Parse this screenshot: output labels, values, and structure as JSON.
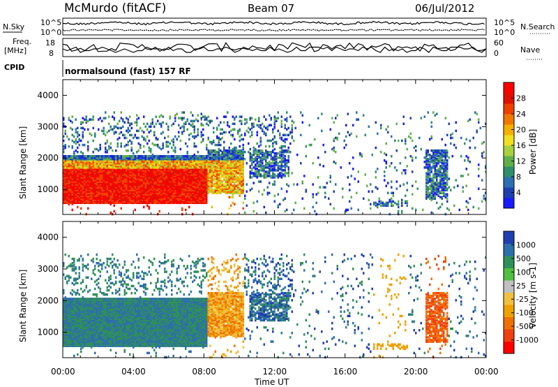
{
  "header": {
    "station": "McMurdo (fitACF)",
    "beam": "Beam 07",
    "date": "06/Jul/2012"
  },
  "panels": {
    "nsky_label": "N.Sky",
    "nsearch_label": "N.Search",
    "freq_label_line1": "Freq.",
    "freq_label_line2": "[MHz]",
    "nave_label": "Nave",
    "cpid_label": "CPID",
    "cpid_text": "normalsound (fast) 157 RF",
    "noise_ticks_left": [
      "10^5",
      "10^0"
    ],
    "noise_ticks_right": [
      "10^5",
      "10^0"
    ],
    "freq_ticks": [
      "18",
      "8"
    ],
    "nave_ticks": [
      "60",
      "0"
    ],
    "freq_range": [
      8,
      18
    ],
    "nave_range": [
      0,
      60
    ]
  },
  "colors": {
    "power_scale": [
      "#1a1aff",
      "#1f3fb0",
      "#2d6fb0",
      "#2f8f6a",
      "#5fb04a",
      "#a8d040",
      "#f0e020",
      "#f5b000",
      "#f07800",
      "#f04000",
      "#e01000",
      "#ff0000"
    ],
    "velocity_scale": [
      "#ff0000",
      "#f04010",
      "#f07000",
      "#f0a000",
      "#f0c040",
      "#c0c0c0",
      "#50c040",
      "#2f8f5a",
      "#2d6faa",
      "#1f3fb0"
    ]
  },
  "chart_data": [
    {
      "type": "heatmap",
      "name": "power",
      "ylabel": "Slant Range [km]",
      "yticks": [
        "1000",
        "2000",
        "3000",
        "4000"
      ],
      "ylim": [
        200,
        4500
      ],
      "colorbar_label": "Power [dB]",
      "colorbar_ticks": [
        "4",
        "8",
        "12",
        "16",
        "20",
        "24",
        "28"
      ],
      "colorbar_range": [
        0,
        30
      ]
    },
    {
      "type": "heatmap",
      "name": "velocity",
      "ylabel": "Slant Range [km]",
      "yticks": [
        "1000",
        "2000",
        "3000",
        "4000"
      ],
      "ylim": [
        200,
        4500
      ],
      "colorbar_label": "Velocity [m s-1]",
      "colorbar_ticks": [
        "1000",
        "500",
        "100",
        "25",
        "-25",
        "-100",
        "-500",
        "-1000"
      ]
    }
  ],
  "xaxis": {
    "label": "Time UT",
    "ticks": [
      "00:00",
      "04:00",
      "08:00",
      "12:00",
      "16:00",
      "20:00",
      "00:00"
    ],
    "range_hours": [
      0,
      24
    ]
  }
}
